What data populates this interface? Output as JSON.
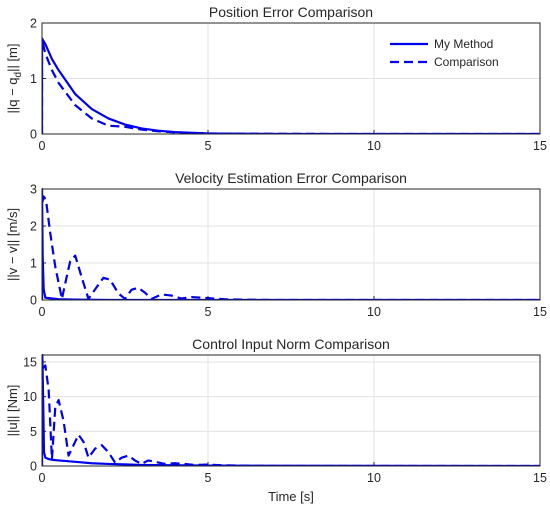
{
  "colors": {
    "series": "#0000ee",
    "grid": "#e3e3e3",
    "axes": "#262626",
    "background": "#ffffff"
  },
  "chart_data": [
    {
      "type": "line",
      "title": "Position Error Comparison",
      "ylabel": "||q − q",
      "ylabel_sub": "d",
      "ylabel_tail": "|| [m]",
      "xlabel": "",
      "xlim": [
        0,
        15
      ],
      "ylim": [
        0,
        2
      ],
      "xticks": [
        "0",
        "5",
        "10",
        "15"
      ],
      "yticks": [
        "0",
        "1",
        "2"
      ],
      "grid": true,
      "legend": {
        "placement": "top-right",
        "entries": [
          "My Method",
          "Comparison"
        ]
      },
      "series": [
        {
          "name": "My Method",
          "style": "solid",
          "x": [
            0,
            0.001,
            0.1,
            0.3,
            0.5,
            1.0,
            1.5,
            2.0,
            2.5,
            3.0,
            3.5,
            4.0,
            5.0,
            6.0,
            8.0,
            10.0,
            15.0
          ],
          "y": [
            0,
            1.72,
            1.62,
            1.35,
            1.15,
            0.72,
            0.45,
            0.28,
            0.17,
            0.1,
            0.06,
            0.035,
            0.01,
            0.004,
            0.001,
            0.0,
            0.0
          ]
        },
        {
          "name": "Comparison",
          "style": "dashed",
          "x": [
            0,
            0.001,
            0.1,
            0.3,
            0.5,
            1.0,
            1.5,
            2.0,
            2.5,
            3.0,
            3.5,
            4.0,
            5.0,
            6.0,
            8.0,
            10.0,
            15.0
          ],
          "y": [
            0,
            1.7,
            1.45,
            1.15,
            0.92,
            0.52,
            0.28,
            0.15,
            0.13,
            0.08,
            0.05,
            0.03,
            0.01,
            0.005,
            0.002,
            0.0,
            0.0
          ]
        }
      ]
    },
    {
      "type": "line",
      "title": "Velocity Estimation Error Comparison",
      "ylabel": "||v − v|| [m/s]",
      "xlabel": "",
      "xlim": [
        0,
        15
      ],
      "ylim": [
        0,
        3
      ],
      "xticks": [
        "0",
        "5",
        "10",
        "15"
      ],
      "yticks": [
        "0",
        "1",
        "2",
        "3"
      ],
      "grid": true,
      "series": [
        {
          "name": "My Method",
          "style": "solid",
          "x": [
            0,
            0.001,
            0.02,
            0.05,
            0.1,
            0.5,
            1.0,
            2.0,
            5.0,
            15.0
          ],
          "y": [
            0,
            3.0,
            1.2,
            0.3,
            0.06,
            0.02,
            0.01,
            0.0,
            0.0,
            0.0
          ]
        },
        {
          "name": "Comparison",
          "style": "dashed",
          "x": [
            0,
            0.001,
            0.05,
            0.12,
            0.25,
            0.4,
            0.6,
            0.7,
            0.85,
            1.0,
            1.2,
            1.4,
            1.65,
            1.85,
            2.05,
            2.3,
            2.5,
            2.7,
            2.9,
            3.1,
            3.3,
            3.6,
            3.9,
            4.2,
            4.5,
            5.0,
            5.5,
            6.0,
            7.0,
            15.0
          ],
          "y": [
            0,
            2.6,
            2.8,
            2.7,
            1.8,
            0.9,
            0.03,
            0.45,
            1.05,
            1.2,
            0.6,
            0.03,
            0.35,
            0.6,
            0.55,
            0.18,
            0.03,
            0.28,
            0.33,
            0.2,
            0.03,
            0.15,
            0.12,
            0.04,
            0.08,
            0.05,
            0.02,
            0.01,
            0.0,
            0.0
          ]
        }
      ]
    },
    {
      "type": "line",
      "title": "Control Input Norm Comparison",
      "ylabel": "||u|| [Nm]",
      "xlabel": "Time [s]",
      "xlim": [
        0,
        15
      ],
      "ylim": [
        0,
        16
      ],
      "xticks": [
        "0",
        "5",
        "10",
        "15"
      ],
      "yticks": [
        "0",
        "5",
        "10",
        "15"
      ],
      "grid": true,
      "series": [
        {
          "name": "My Method",
          "style": "solid",
          "x": [
            0,
            0.01,
            0.04,
            0.06,
            0.1,
            0.15,
            0.2,
            0.3,
            0.5,
            1.0,
            1.5,
            2.0,
            3.0,
            5.0,
            15.0
          ],
          "y": [
            0,
            16.0,
            8.0,
            2.0,
            1.2,
            1.1,
            1.0,
            0.9,
            0.8,
            0.6,
            0.4,
            0.3,
            0.15,
            0.05,
            0.0
          ]
        },
        {
          "name": "Comparison",
          "style": "dashed",
          "x": [
            0,
            0.01,
            0.1,
            0.2,
            0.3,
            0.4,
            0.5,
            0.65,
            0.8,
            0.95,
            1.1,
            1.25,
            1.4,
            1.6,
            1.8,
            2.0,
            2.2,
            2.4,
            2.6,
            2.8,
            3.0,
            3.2,
            3.4,
            3.7,
            4.0,
            4.3,
            4.6,
            5.0,
            5.5,
            6.0,
            7.0,
            15.0
          ],
          "y": [
            0,
            14.0,
            14.5,
            11.0,
            1.0,
            8.5,
            9.5,
            6.5,
            1.5,
            3.0,
            4.5,
            3.5,
            1.2,
            2.5,
            3.0,
            2.0,
            0.5,
            1.2,
            1.5,
            0.8,
            0.3,
            0.8,
            0.6,
            0.3,
            0.4,
            0.3,
            0.15,
            0.2,
            0.1,
            0.05,
            0.0,
            0.0
          ]
        }
      ]
    }
  ]
}
